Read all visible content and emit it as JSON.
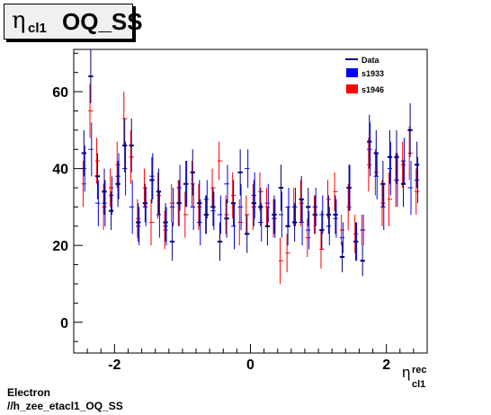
{
  "title": {
    "symbol": "η",
    "subscript": "cl1",
    "text": "OQ_SS"
  },
  "footer": {
    "line1": "Electron",
    "line2": "//h_zee_etacl1_OQ_SS"
  },
  "colors": {
    "data": "#000080",
    "s1933": "#0000ff",
    "s1946": "#ff0000"
  },
  "chart_data": {
    "type": "scatter",
    "title": "",
    "xlabel": "η cl1 rec",
    "xlabel_parts": {
      "symbol": "η",
      "sup": "rec",
      "sub": "cl1"
    },
    "ylabel": "",
    "xlim": [
      -2.6,
      2.6
    ],
    "ylim": [
      -8,
      71
    ],
    "x_ticks": [
      -2,
      0,
      2
    ],
    "x_tick_labels": [
      "-2",
      "0",
      "2"
    ],
    "y_ticks": [
      0,
      20,
      40,
      60
    ],
    "y_tick_labels": [
      "0",
      "20",
      "40",
      "60"
    ],
    "bin_width": 0.1,
    "legend": {
      "position": "top-right",
      "entries": [
        "Data",
        "s1933",
        "s1946"
      ]
    },
    "series": [
      {
        "name": "Data",
        "x": [
          -2.45,
          -2.35,
          -2.25,
          -2.15,
          -2.05,
          -1.95,
          -1.85,
          -1.75,
          -1.65,
          -1.55,
          -1.45,
          -1.35,
          -1.25,
          -1.15,
          -1.05,
          -0.95,
          -0.85,
          -0.75,
          -0.65,
          -0.55,
          -0.45,
          -0.35,
          -0.25,
          -0.15,
          -0.05,
          0.05,
          0.15,
          0.25,
          0.35,
          0.45,
          0.55,
          0.65,
          0.75,
          0.85,
          0.95,
          1.05,
          1.15,
          1.25,
          1.35,
          1.45,
          1.55,
          1.65,
          1.75,
          1.85,
          1.95,
          2.05,
          2.15,
          2.25,
          2.35,
          2.45
        ],
        "y": [
          44,
          64,
          38,
          34,
          29,
          36,
          46,
          46,
          26,
          31,
          37,
          34,
          26,
          21,
          31,
          36,
          39,
          31,
          28,
          30,
          21,
          27,
          31,
          39,
          23,
          31,
          30,
          25,
          28,
          35,
          25,
          26,
          32,
          30,
          28,
          24,
          28,
          28,
          17,
          35,
          21,
          16,
          47,
          44,
          36,
          43,
          43,
          36,
          50,
          41
        ],
        "err": [
          6,
          7,
          6,
          6,
          5,
          6,
          7,
          7,
          5,
          5,
          6,
          6,
          5,
          5,
          6,
          6,
          6,
          6,
          5,
          5,
          5,
          5,
          6,
          6,
          5,
          6,
          5,
          5,
          5,
          6,
          5,
          5,
          6,
          5,
          5,
          5,
          5,
          5,
          4,
          6,
          5,
          4,
          7,
          6,
          6,
          7,
          7,
          6,
          7,
          6
        ]
      },
      {
        "name": "s1933",
        "x": [
          -2.45,
          -2.35,
          -2.25,
          -2.15,
          -2.05,
          -1.95,
          -1.85,
          -1.75,
          -1.65,
          -1.55,
          -1.45,
          -1.35,
          -1.25,
          -1.15,
          -1.05,
          -0.95,
          -0.85,
          -0.75,
          -0.65,
          -0.55,
          -0.45,
          -0.35,
          -0.25,
          -0.15,
          -0.05,
          0.05,
          0.15,
          0.25,
          0.35,
          0.45,
          0.55,
          0.65,
          0.75,
          0.85,
          0.95,
          1.05,
          1.15,
          1.25,
          1.35,
          1.45,
          1.55,
          1.65,
          1.75,
          1.85,
          1.95,
          2.05,
          2.15,
          2.25,
          2.35,
          2.45
        ],
        "y": [
          40,
          45,
          31,
          31,
          33,
          38,
          40,
          30,
          25,
          30,
          38,
          28,
          25,
          30,
          35,
          36,
          30,
          26,
          32,
          29,
          28,
          36,
          25,
          30,
          40,
          33,
          26,
          31,
          27,
          28,
          30,
          30,
          26,
          24,
          30,
          28,
          25,
          27,
          22,
          35,
          21,
          24,
          45,
          38,
          30,
          40,
          37,
          42,
          35,
          37
        ],
        "err": [
          6,
          7,
          6,
          6,
          5,
          6,
          7,
          7,
          5,
          5,
          6,
          6,
          5,
          5,
          6,
          6,
          6,
          6,
          5,
          5,
          5,
          5,
          6,
          6,
          5,
          6,
          5,
          5,
          5,
          6,
          5,
          5,
          6,
          5,
          5,
          5,
          5,
          5,
          4,
          6,
          5,
          4,
          7,
          6,
          6,
          7,
          7,
          6,
          7,
          6
        ]
      },
      {
        "name": "s1946",
        "x": [
          -2.45,
          -2.35,
          -2.25,
          -2.15,
          -2.05,
          -1.95,
          -1.85,
          -1.75,
          -1.65,
          -1.55,
          -1.45,
          -1.35,
          -1.25,
          -1.15,
          -1.05,
          -0.95,
          -0.85,
          -0.75,
          -0.65,
          -0.55,
          -0.45,
          -0.35,
          -0.25,
          -0.15,
          -0.05,
          0.05,
          0.15,
          0.25,
          0.35,
          0.45,
          0.55,
          0.65,
          0.75,
          0.85,
          0.95,
          1.05,
          1.15,
          1.25,
          1.35,
          1.45,
          1.55,
          1.65,
          1.75,
          1.85,
          1.95,
          2.05,
          2.15,
          2.25,
          2.35,
          2.45
        ],
        "y": [
          36,
          55,
          42,
          30,
          35,
          41,
          53,
          43,
          27,
          35,
          26,
          33,
          24,
          31,
          31,
          28,
          36,
          30,
          28,
          35,
          42,
          28,
          33,
          26,
          28,
          30,
          34,
          30,
          27,
          16,
          18,
          30,
          31,
          22,
          28,
          19,
          32,
          34,
          24,
          30,
          23,
          24,
          41,
          39,
          31,
          32,
          37,
          41,
          44,
          34
        ],
        "err": [
          6,
          7,
          6,
          6,
          5,
          6,
          7,
          7,
          5,
          5,
          6,
          6,
          5,
          5,
          6,
          6,
          6,
          6,
          5,
          5,
          5,
          5,
          6,
          6,
          5,
          6,
          5,
          5,
          5,
          6,
          5,
          5,
          6,
          5,
          5,
          5,
          5,
          5,
          4,
          6,
          5,
          4,
          7,
          6,
          6,
          7,
          7,
          6,
          7,
          6
        ]
      }
    ]
  }
}
